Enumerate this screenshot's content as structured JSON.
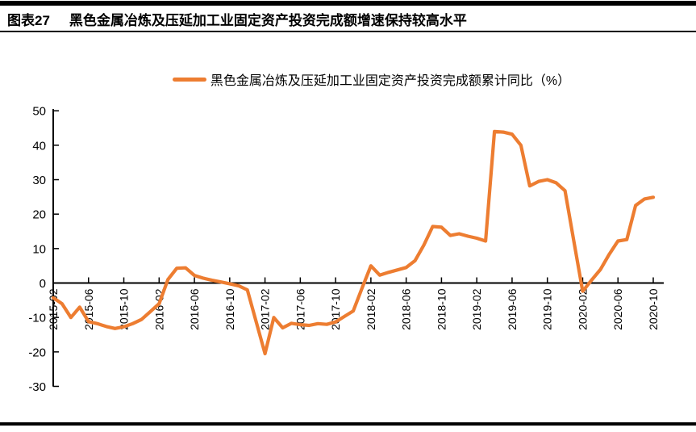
{
  "header": {
    "tag": "图表27",
    "title": "黑色金属冶炼及压延加工业固定资产投资完成额增速保持较高水平"
  },
  "legend": {
    "label": "黑色金属冶炼及压延加工业固定资产投资完成额累计同比（%）"
  },
  "chart_data": {
    "type": "line",
    "title": "黑色金属冶炼及压延加工业固定资产投资完成额增速保持较高水平",
    "series_name": "黑色金属冶炼及压延加工业固定资产投资完成额累计同比（%）",
    "color": "#ED7D31",
    "axis_color": "#000000",
    "ylim": [
      -30,
      50
    ],
    "y_ticks": [
      50,
      40,
      30,
      20,
      10,
      0,
      -10,
      -20,
      -30
    ],
    "grid": false,
    "legend_position": "top",
    "x_tick_every": 4,
    "x_tick_labels": [
      "2015-02",
      "2015-06",
      "2015-10",
      "2016-02",
      "2016-06",
      "2016-10",
      "2017-02",
      "2017-06",
      "2017-10",
      "2018-02",
      "2018-06",
      "2018-10",
      "2019-02",
      "2019-06",
      "2019-10",
      "2020-02",
      "2020-06",
      "2020-10"
    ],
    "x": [
      "2015-02",
      "2015-03",
      "2015-04",
      "2015-05",
      "2015-06",
      "2015-07",
      "2015-08",
      "2015-09",
      "2015-10",
      "2015-11",
      "2015-12",
      "2016-01",
      "2016-02",
      "2016-03",
      "2016-04",
      "2016-05",
      "2016-06",
      "2016-07",
      "2016-08",
      "2016-09",
      "2016-10",
      "2016-11",
      "2016-12",
      "2017-01",
      "2017-02",
      "2017-03",
      "2017-04",
      "2017-05",
      "2017-06",
      "2017-07",
      "2017-08",
      "2017-09",
      "2017-10",
      "2017-11",
      "2017-12",
      "2018-01",
      "2018-02",
      "2018-03",
      "2018-04",
      "2018-05",
      "2018-06",
      "2018-07",
      "2018-08",
      "2018-09",
      "2018-10",
      "2018-11",
      "2018-12",
      "2019-01",
      "2019-02",
      "2019-03",
      "2019-04",
      "2019-05",
      "2019-06",
      "2019-07",
      "2019-08",
      "2019-09",
      "2019-10",
      "2019-11",
      "2019-12",
      "2020-01",
      "2020-02",
      "2020-03",
      "2020-04",
      "2020-05",
      "2020-06",
      "2020-07",
      "2020-08",
      "2020-09",
      "2020-10"
    ],
    "values": [
      -4.3,
      -6,
      -10,
      -7,
      -11.2,
      -11.8,
      -12.6,
      -13.2,
      -12.7,
      -11.8,
      -10.6,
      -8.3,
      -6,
      1,
      4.3,
      4.4,
      2.2,
      1.4,
      0.8,
      0.3,
      -0.2,
      -0.8,
      -2,
      -11.2,
      -20.5,
      -10,
      -13,
      -11.7,
      -12.1,
      -12.3,
      -11.8,
      -12,
      -11.3,
      -9.7,
      -8.1,
      -1.5,
      5,
      2.3,
      3.1,
      3.8,
      4.5,
      6.5,
      11,
      16.4,
      16.2,
      13.8,
      14.3,
      13.6,
      13,
      12.2,
      44,
      43.8,
      43.2,
      40,
      28.2,
      29.5,
      30,
      29.1,
      26.8,
      12.2,
      -2.4,
      0.8,
      3.9,
      8.3,
      12.2,
      12.6,
      22.5,
      24.4,
      24.9
    ]
  }
}
